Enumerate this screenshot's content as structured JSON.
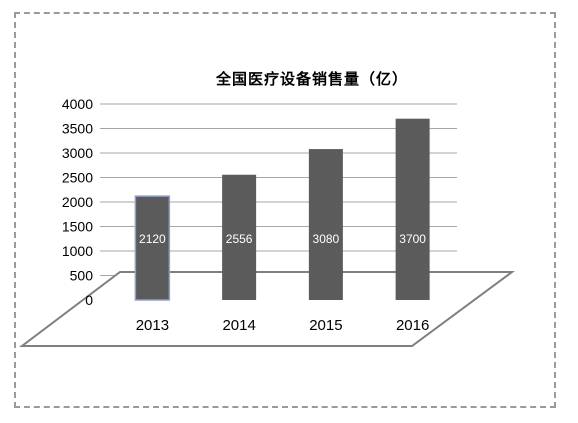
{
  "chart_data": {
    "type": "bar",
    "title": "全国医疗设备销售量（亿）",
    "categories": [
      "2013",
      "2014",
      "2015",
      "2016"
    ],
    "values": [
      2120,
      2556,
      3080,
      3700
    ],
    "data_labels": [
      "2120",
      "2556",
      "3080",
      "3700"
    ],
    "ylim": [
      0,
      4000
    ],
    "yticks": [
      "0",
      "500",
      "1000",
      "1500",
      "2000",
      "2500",
      "3000",
      "3500",
      "4000"
    ],
    "xlabel": "",
    "ylabel": "",
    "grid": true,
    "legend": "none",
    "style": "3d-floor",
    "colors": {
      "bar": "#5b5b5b",
      "first_bar_border": "#8ea3c6",
      "grid": "#a6a6a6",
      "floor_border": "#7f7f7f"
    }
  }
}
